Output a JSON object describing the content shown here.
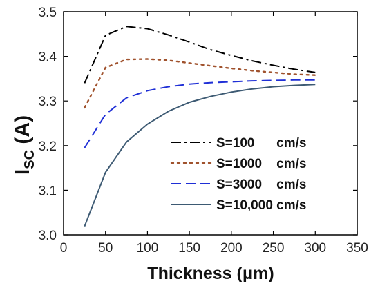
{
  "chart_data": {
    "type": "line",
    "xlabel": "Thickness (μm)",
    "ylabel_main": "I",
    "ylabel_sub": "SC",
    "ylabel_rest": " (A)",
    "xlim": [
      0,
      350
    ],
    "ylim": [
      3.0,
      3.5
    ],
    "x_ticks": [
      0,
      50,
      100,
      150,
      200,
      250,
      300,
      350
    ],
    "y_ticks": [
      3.0,
      3.1,
      3.2,
      3.3,
      3.4,
      3.5
    ],
    "x_tick_labels": [
      "0",
      "50",
      "100",
      "150",
      "200",
      "250",
      "300",
      "350"
    ],
    "y_tick_labels": [
      "3.0",
      "3.1",
      "3.2",
      "3.3",
      "3.4",
      "3.5"
    ],
    "grid": false,
    "legend_position": "center-right",
    "series": [
      {
        "name": "S=100      cm/s",
        "color": "#000000",
        "dash": "dash-dot",
        "x": [
          25,
          50,
          75,
          100,
          125,
          150,
          175,
          200,
          225,
          250,
          275,
          300
        ],
        "y": [
          3.34,
          3.447,
          3.467,
          3.462,
          3.448,
          3.432,
          3.415,
          3.402,
          3.39,
          3.38,
          3.371,
          3.364
        ]
      },
      {
        "name": "S=1000    cm/s",
        "color": "#a0522d",
        "dash": "dot",
        "x": [
          25,
          50,
          75,
          100,
          125,
          150,
          175,
          200,
          225,
          250,
          275,
          300
        ],
        "y": [
          3.285,
          3.375,
          3.393,
          3.394,
          3.391,
          3.385,
          3.379,
          3.373,
          3.368,
          3.364,
          3.36,
          3.358
        ]
      },
      {
        "name": "S=3000    cm/s",
        "color": "#1f2fd6",
        "dash": "dash",
        "x": [
          25,
          50,
          75,
          100,
          125,
          150,
          175,
          200,
          225,
          250,
          275,
          300
        ],
        "y": [
          3.195,
          3.27,
          3.307,
          3.323,
          3.332,
          3.338,
          3.341,
          3.343,
          3.345,
          3.346,
          3.347,
          3.347
        ]
      },
      {
        "name": "S=10,000 cm/s",
        "color": "#3d5a73",
        "dash": "solid",
        "x": [
          25,
          50,
          75,
          100,
          125,
          150,
          175,
          200,
          225,
          250,
          275,
          300
        ],
        "y": [
          3.019,
          3.14,
          3.208,
          3.248,
          3.277,
          3.297,
          3.31,
          3.32,
          3.327,
          3.332,
          3.335,
          3.337
        ]
      }
    ]
  }
}
